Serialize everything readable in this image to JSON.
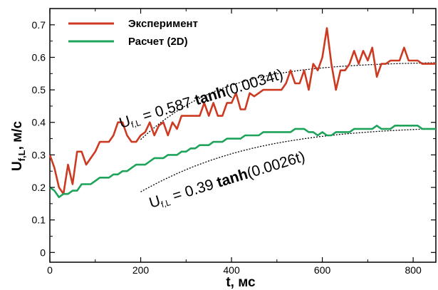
{
  "chart_data": {
    "type": "line",
    "xlabel": "t, мс",
    "ylabel_main": "U",
    "ylabel_sub": "f,L",
    "ylabel_unit": ", м/с",
    "xlim": [
      0,
      850
    ],
    "ylim": [
      -0.03,
      0.75
    ],
    "xticks": [
      0,
      200,
      400,
      600,
      800
    ],
    "xtick_labels": [
      "0",
      "200",
      "400",
      "600",
      "800"
    ],
    "yticks": [
      0,
      0.1,
      0.2,
      0.3,
      0.4,
      0.5,
      0.6,
      0.7
    ],
    "ytick_labels": [
      "0",
      "0.1",
      "0.2",
      "0.3",
      "0.4",
      "0.5",
      "0.6",
      "0.7"
    ],
    "grid": false,
    "legend_position": "top-left",
    "series": [
      {
        "name": "Эксперимент",
        "color": "#cc3a22",
        "x": [
          0,
          10,
          20,
          30,
          40,
          50,
          60,
          70,
          80,
          90,
          100,
          110,
          120,
          130,
          140,
          150,
          160,
          170,
          180,
          190,
          200,
          210,
          220,
          230,
          240,
          250,
          260,
          270,
          280,
          290,
          300,
          310,
          320,
          330,
          340,
          350,
          360,
          370,
          380,
          390,
          400,
          410,
          420,
          430,
          440,
          450,
          460,
          470,
          480,
          490,
          500,
          510,
          520,
          530,
          540,
          550,
          560,
          570,
          580,
          590,
          600,
          610,
          620,
          630,
          640,
          650,
          660,
          670,
          680,
          690,
          700,
          710,
          720,
          730,
          740,
          750,
          760,
          770,
          780,
          790,
          800,
          810,
          820,
          830,
          840,
          850
        ],
        "y": [
          0.3,
          0.26,
          0.2,
          0.18,
          0.27,
          0.21,
          0.31,
          0.31,
          0.27,
          0.29,
          0.31,
          0.34,
          0.34,
          0.34,
          0.36,
          0.4,
          0.4,
          0.36,
          0.34,
          0.34,
          0.36,
          0.37,
          0.4,
          0.36,
          0.39,
          0.4,
          0.36,
          0.4,
          0.38,
          0.42,
          0.42,
          0.42,
          0.42,
          0.42,
          0.46,
          0.42,
          0.46,
          0.42,
          0.42,
          0.46,
          0.46,
          0.49,
          0.44,
          0.44,
          0.49,
          0.48,
          0.49,
          0.5,
          0.5,
          0.5,
          0.5,
          0.5,
          0.52,
          0.56,
          0.52,
          0.52,
          0.56,
          0.5,
          0.58,
          0.56,
          0.6,
          0.69,
          0.58,
          0.5,
          0.56,
          0.56,
          0.58,
          0.62,
          0.58,
          0.62,
          0.59,
          0.63,
          0.54,
          0.58,
          0.58,
          0.59,
          0.59,
          0.59,
          0.63,
          0.59,
          0.59,
          0.59,
          0.58,
          0.58,
          0.58,
          0.58
        ]
      },
      {
        "name": "Расчет (2D)",
        "color": "#1fa35b",
        "x": [
          0,
          10,
          20,
          30,
          40,
          50,
          60,
          70,
          80,
          90,
          100,
          110,
          120,
          130,
          140,
          150,
          160,
          170,
          180,
          190,
          200,
          210,
          220,
          230,
          240,
          250,
          260,
          270,
          280,
          290,
          300,
          310,
          320,
          330,
          340,
          350,
          360,
          370,
          380,
          390,
          400,
          410,
          420,
          430,
          440,
          450,
          460,
          470,
          480,
          490,
          500,
          510,
          520,
          530,
          540,
          550,
          560,
          570,
          580,
          590,
          600,
          610,
          620,
          630,
          640,
          650,
          660,
          670,
          680,
          690,
          700,
          710,
          720,
          730,
          740,
          750,
          760,
          770,
          780,
          790,
          800,
          810,
          820,
          830,
          840,
          850
        ],
        "y": [
          0.2,
          0.19,
          0.17,
          0.18,
          0.18,
          0.19,
          0.19,
          0.21,
          0.21,
          0.21,
          0.22,
          0.23,
          0.23,
          0.23,
          0.24,
          0.24,
          0.25,
          0.25,
          0.26,
          0.27,
          0.27,
          0.27,
          0.28,
          0.29,
          0.29,
          0.29,
          0.3,
          0.3,
          0.3,
          0.31,
          0.31,
          0.32,
          0.32,
          0.33,
          0.33,
          0.33,
          0.34,
          0.34,
          0.34,
          0.35,
          0.35,
          0.35,
          0.35,
          0.36,
          0.36,
          0.36,
          0.36,
          0.37,
          0.37,
          0.37,
          0.37,
          0.37,
          0.37,
          0.37,
          0.38,
          0.38,
          0.38,
          0.37,
          0.37,
          0.36,
          0.37,
          0.36,
          0.36,
          0.37,
          0.37,
          0.37,
          0.37,
          0.38,
          0.38,
          0.38,
          0.38,
          0.38,
          0.39,
          0.38,
          0.38,
          0.38,
          0.39,
          0.39,
          0.39,
          0.39,
          0.39,
          0.39,
          0.38,
          0.38,
          0.38,
          0.38
        ]
      }
    ],
    "fits": [
      {
        "amplitude": 0.587,
        "rate": 0.0034,
        "x_start": 200,
        "x_end": 850,
        "prefix": "U",
        "sub": "f,L",
        "eq": " = 0.587 ",
        "fn": "tanh",
        "arg": "(0.0034t)"
      },
      {
        "amplitude": 0.39,
        "rate": 0.0026,
        "x_start": 200,
        "x_end": 850,
        "prefix": "U",
        "sub": "f,L",
        "eq": " = 0.39 ",
        "fn": "tanh",
        "arg": "(0.0026t)"
      }
    ]
  }
}
